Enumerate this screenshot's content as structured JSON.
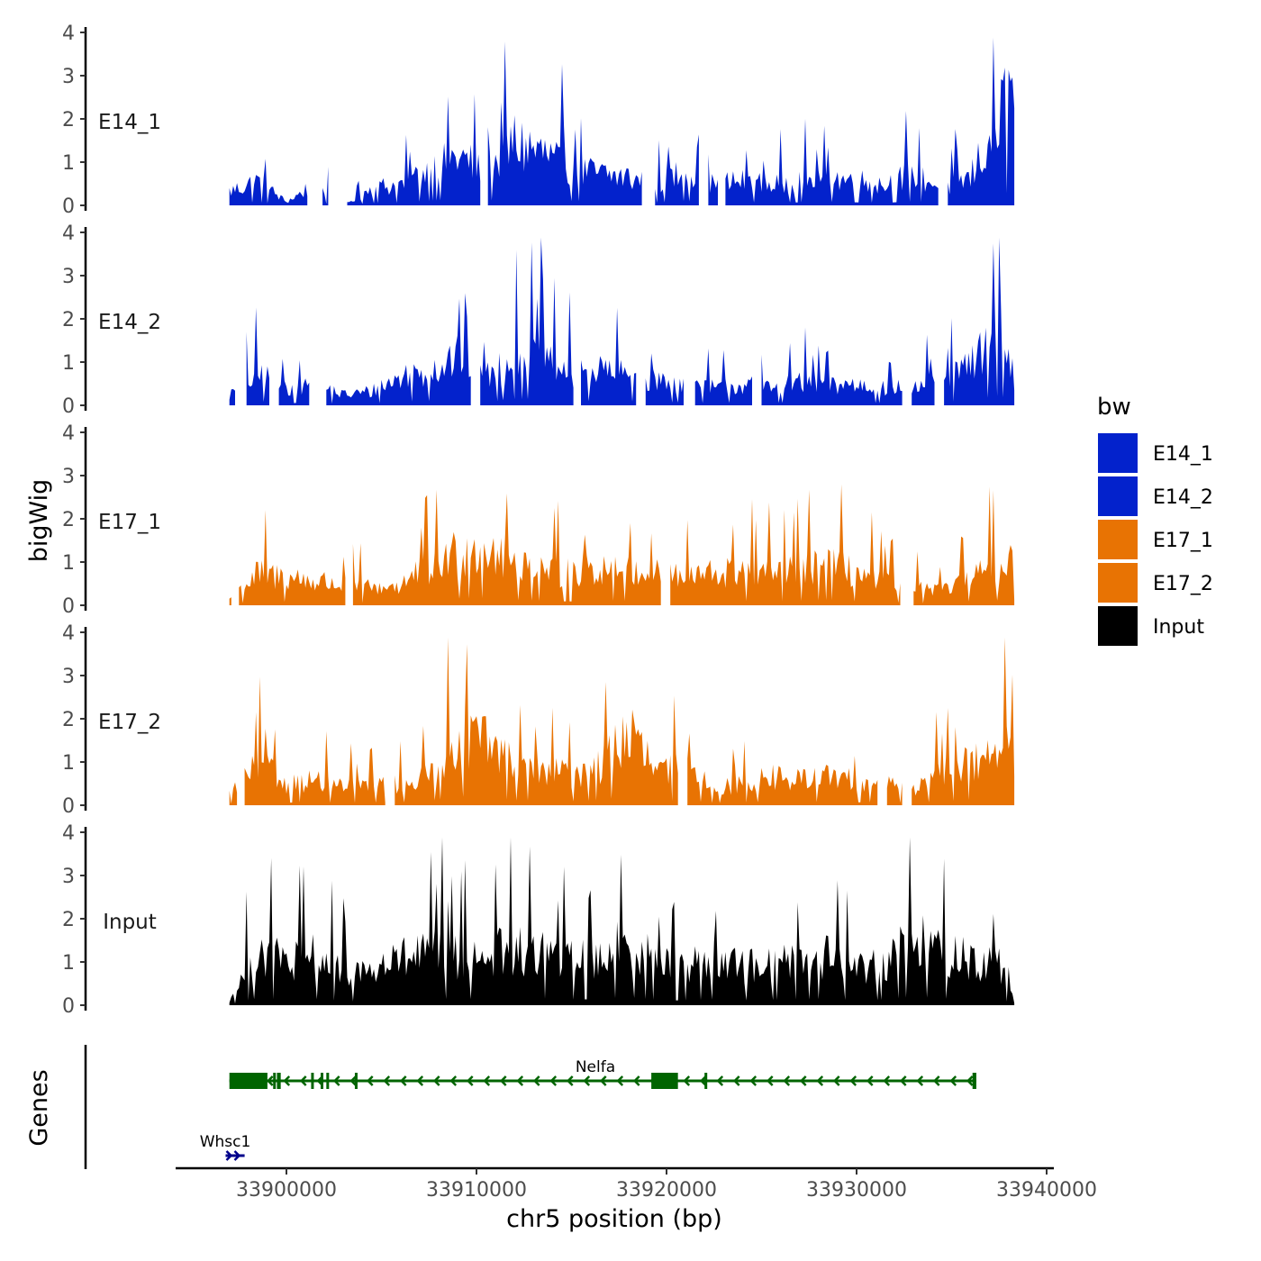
{
  "chart_data": {
    "type": "area",
    "ylabel": "bigWig",
    "xlabel": "chr5 position (bp)",
    "xlim": [
      33894000,
      33940000
    ],
    "data_range": [
      33897000,
      33938300
    ],
    "x_ticks": [
      33900000,
      33910000,
      33920000,
      33930000,
      33940000
    ],
    "x_tick_labels": [
      "33900000",
      "33910000",
      "33920000",
      "33930000",
      "33940000"
    ],
    "ylim": [
      0,
      4
    ],
    "y_ticks": [
      0,
      1,
      2,
      3,
      4
    ],
    "y_tick_labels": [
      "0",
      "1",
      "2",
      "3",
      "4"
    ],
    "legend": {
      "title": "bw",
      "position": "right",
      "entries": [
        {
          "label": "E14_1",
          "color": "#0322CC"
        },
        {
          "label": "E14_2",
          "color": "#0322CC"
        },
        {
          "label": "E17_1",
          "color": "#E87303"
        },
        {
          "label": "E17_2",
          "color": "#E87303"
        },
        {
          "label": "Input",
          "color": "#000000"
        }
      ]
    },
    "series": [
      {
        "name": "E14_1",
        "color": "#0322CC",
        "x": [
          33897000,
          33898500,
          33900000,
          33901500,
          33903000,
          33904500,
          33906000,
          33907500,
          33909000,
          33910500,
          33912000,
          33913500,
          33915000,
          33916500,
          33918000,
          33919500,
          33921000,
          33922500,
          33924000,
          33925500,
          33927000,
          33928500,
          33930000,
          33931500,
          33933000,
          33934500,
          33936000,
          33937500,
          33938300
        ],
        "values": [
          0.4,
          0.7,
          0.1,
          0.6,
          0.0,
          0.5,
          0.6,
          1.0,
          1.4,
          1.0,
          1.8,
          1.5,
          1.0,
          0.9,
          0.8,
          0.6,
          1.0,
          0.6,
          0.7,
          0.6,
          0.7,
          0.8,
          0.7,
          0.6,
          0.9,
          0.5,
          0.8,
          2.5,
          3.2
        ],
        "gaps": [
          [
            33901200,
            33901800
          ],
          [
            33902300,
            33903100
          ],
          [
            33910300,
            33910500
          ],
          [
            33918800,
            33919300
          ],
          [
            33921800,
            33922100
          ],
          [
            33922800,
            33923000
          ],
          [
            33934400,
            33934700
          ]
        ]
      },
      {
        "name": "E14_2",
        "color": "#0322CC",
        "x": [
          33897000,
          33898500,
          33900000,
          33901500,
          33903000,
          33904500,
          33906000,
          33907500,
          33909000,
          33910500,
          33912000,
          33913500,
          33915000,
          33916500,
          33918000,
          33919500,
          33921000,
          33922500,
          33924000,
          33925500,
          33927000,
          33928500,
          33930000,
          33931500,
          33933000,
          33934500,
          33936000,
          33937500,
          33938300
        ],
        "values": [
          0.3,
          0.9,
          0.5,
          0.6,
          0.3,
          0.4,
          0.8,
          1.0,
          1.4,
          0.8,
          1.4,
          1.5,
          0.9,
          1.0,
          0.9,
          0.7,
          0.6,
          0.5,
          0.6,
          0.5,
          0.7,
          0.6,
          0.6,
          0.5,
          0.5,
          0.7,
          1.1,
          2.2,
          0.8
        ],
        "gaps": [
          [
            33897400,
            33897800
          ],
          [
            33899200,
            33899500
          ],
          [
            33901300,
            33902000
          ],
          [
            33909800,
            33910100
          ],
          [
            33915200,
            33915400
          ],
          [
            33918500,
            33918800
          ],
          [
            33921000,
            33921400
          ],
          [
            33924600,
            33924900
          ],
          [
            33932500,
            33932800
          ],
          [
            33934200,
            33934500
          ]
        ]
      },
      {
        "name": "E17_1",
        "color": "#E87303",
        "x": [
          33897000,
          33898500,
          33900000,
          33901500,
          33903000,
          33904500,
          33906000,
          33907500,
          33909000,
          33910500,
          33912000,
          33913500,
          33915000,
          33916500,
          33918000,
          33919500,
          33921000,
          33922500,
          33924000,
          33925500,
          33927000,
          33928500,
          33930000,
          33931500,
          33933000,
          33934500,
          33936000,
          33937500,
          33938300
        ],
        "values": [
          0.2,
          0.9,
          0.8,
          0.7,
          0.6,
          0.5,
          0.6,
          1.1,
          1.5,
          1.7,
          1.2,
          1.0,
          0.9,
          1.1,
          1.0,
          1.0,
          0.8,
          0.9,
          1.0,
          0.9,
          1.0,
          1.2,
          0.9,
          0.7,
          0.5,
          0.4,
          0.9,
          1.1,
          1.3
        ],
        "gaps": [
          [
            33897200,
            33897400
          ],
          [
            33903200,
            33903400
          ],
          [
            33919800,
            33920100
          ],
          [
            33932400,
            33932900
          ]
        ]
      },
      {
        "name": "E17_2",
        "color": "#E87303",
        "x": [
          33897000,
          33898500,
          33900000,
          33901500,
          33903000,
          33904500,
          33906000,
          33907500,
          33909000,
          33910500,
          33912000,
          33913500,
          33915000,
          33916500,
          33918000,
          33919500,
          33921000,
          33922500,
          33924000,
          33925500,
          33927000,
          33928500,
          33930000,
          33931500,
          33933000,
          33934500,
          33936000,
          33937500,
          33938300
        ],
        "values": [
          0.3,
          1.2,
          0.6,
          0.7,
          0.5,
          0.6,
          0.6,
          0.9,
          2.0,
          1.8,
          1.1,
          1.0,
          0.9,
          1.1,
          2.1,
          0.9,
          1.1,
          0.5,
          0.6,
          0.8,
          0.7,
          0.8,
          0.7,
          0.6,
          0.5,
          0.9,
          1.2,
          1.8,
          1.4
        ],
        "gaps": [
          [
            33897500,
            33897700
          ],
          [
            33905300,
            33905600
          ],
          [
            33920700,
            33921000
          ],
          [
            33931200,
            33931500
          ],
          [
            33932500,
            33932800
          ]
        ]
      },
      {
        "name": "Input",
        "color": "#000000",
        "x": [
          33897000,
          33898500,
          33900000,
          33901500,
          33903000,
          33904500,
          33906000,
          33907500,
          33909000,
          33910500,
          33912000,
          33913500,
          33915000,
          33916500,
          33918000,
          33919500,
          33921000,
          33922500,
          33924000,
          33925500,
          33927000,
          33928500,
          33930000,
          33931500,
          33933000,
          33934500,
          33936000,
          33937500,
          33938300
        ],
        "values": [
          0.1,
          1.6,
          1.2,
          1.4,
          0.9,
          1.0,
          1.3,
          1.5,
          1.4,
          1.5,
          1.6,
          1.5,
          1.3,
          1.4,
          1.8,
          1.2,
          1.1,
          1.3,
          1.1,
          1.2,
          1.3,
          1.4,
          1.1,
          1.2,
          2.0,
          1.5,
          1.3,
          1.2,
          0.5
        ],
        "gaps": []
      }
    ],
    "genes_track": {
      "label": "Genes",
      "genes": [
        {
          "name": "Nelfa",
          "start": 33897000,
          "end": 33936300,
          "strand": "-",
          "color": "#006400",
          "exons": [
            [
              33897000,
              33899000
            ],
            [
              33899300,
              33899400
            ],
            [
              33899500,
              33899700
            ],
            [
              33901300,
              33901400
            ],
            [
              33901800,
              33901900
            ],
            [
              33902100,
              33902200
            ],
            [
              33903600,
              33903700
            ],
            [
              33919200,
              33920600
            ],
            [
              33922000,
              33922100
            ],
            [
              33936100,
              33936300
            ]
          ]
        },
        {
          "name": "Whsc1",
          "start": 33896800,
          "end": 33897800,
          "strand": "+",
          "color": "#00008B",
          "exons": []
        }
      ]
    }
  }
}
